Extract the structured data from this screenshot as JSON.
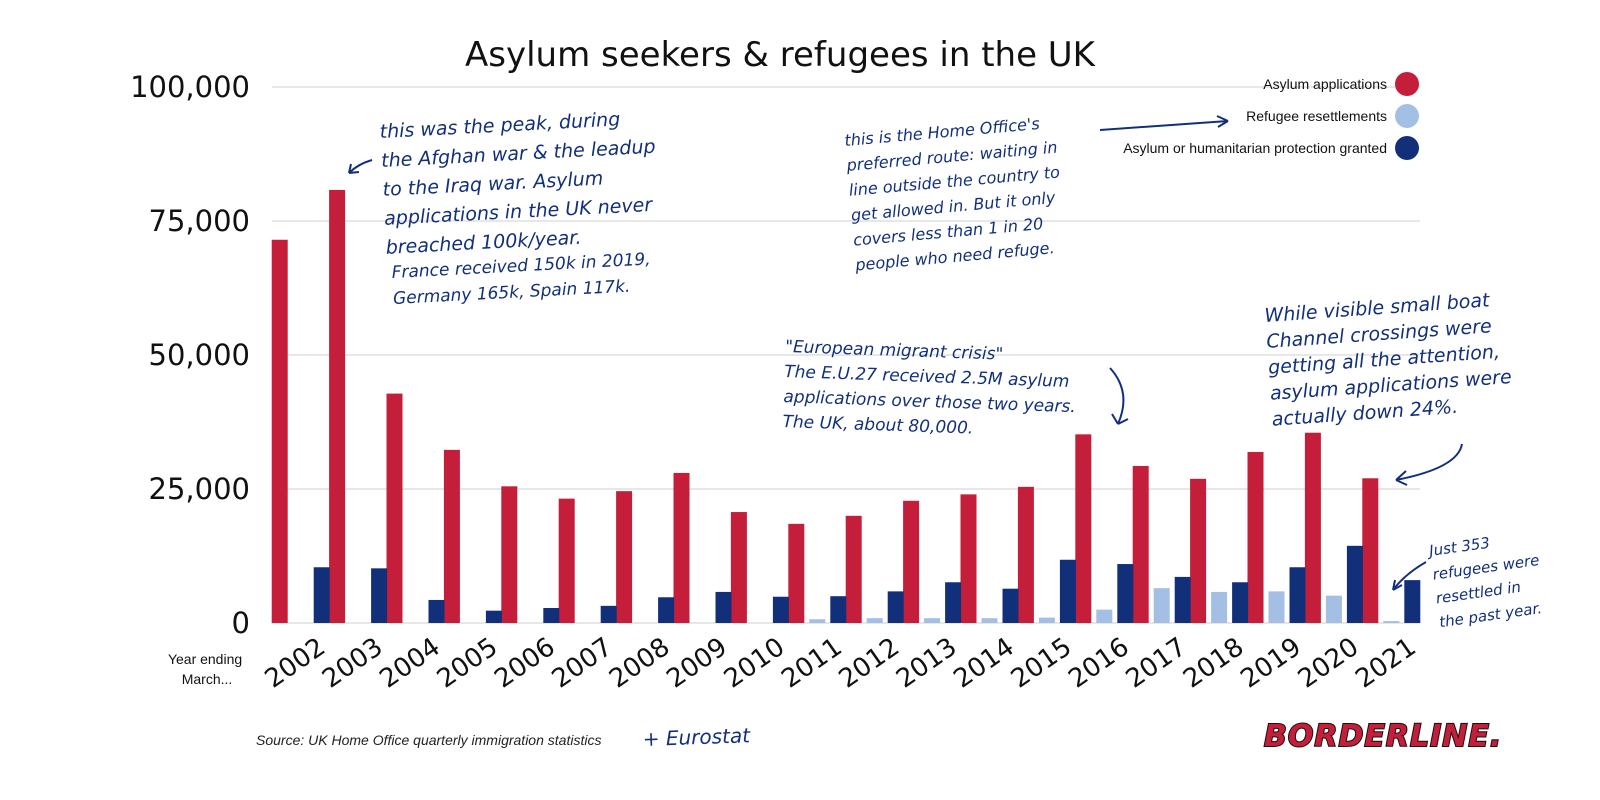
{
  "chart_data": {
    "type": "bar",
    "title": "Asylum seekers & refugees in the UK",
    "xlabel": "Year ending March...",
    "ylabel": "",
    "ylim": [
      0,
      100000
    ],
    "yticks": [
      "0",
      "25,000",
      "50,000",
      "75,000",
      "100,000"
    ],
    "categories": [
      "2002",
      "2003",
      "2004",
      "2005",
      "2006",
      "2007",
      "2008",
      "2009",
      "2010",
      "2011",
      "2012",
      "2013",
      "2014",
      "2015",
      "2016",
      "2017",
      "2018",
      "2019",
      "2020",
      "2021"
    ],
    "series": [
      {
        "name": "Asylum applications",
        "color": "#c41e3a",
        "values": [
          71500,
          80800,
          42800,
          32300,
          25500,
          23200,
          24600,
          28000,
          20700,
          18500,
          20000,
          22800,
          24000,
          25400,
          35200,
          29300,
          26900,
          31900,
          35500,
          27000
        ]
      },
      {
        "name": "Refugee resettlements",
        "color": "#a3bfe3",
        "values": [
          0,
          0,
          0,
          0,
          0,
          0,
          0,
          0,
          0,
          700,
          900,
          900,
          900,
          1000,
          2500,
          6500,
          5800,
          5900,
          5100,
          353
        ]
      },
      {
        "name": "Asylum or humanitarian protection granted",
        "color": "#12307a",
        "values": [
          10400,
          10200,
          4300,
          2300,
          2800,
          3200,
          4800,
          5800,
          4900,
          5000,
          5900,
          7600,
          6400,
          11800,
          11000,
          8600,
          7600,
          10400,
          14400,
          8000
        ]
      }
    ],
    "legend_position": "top-right"
  },
  "source": "Source: UK Home Office quarterly immigration statistics",
  "source_handwritten": "+ Eurostat",
  "logo": "BORDERLINE.",
  "annotations": {
    "peak": [
      "this was the peak, during",
      "the Afghan war & the leadup",
      "to the Iraq war. Asylum",
      "applications in the UK never",
      "breached 100k/year."
    ],
    "europe_compare": [
      "France received 150k in 2019,",
      "Germany 165k, Spain 117k."
    ],
    "home_office": [
      "this is the Home Office's",
      "preferred route: waiting in",
      "line outside the country to",
      "get allowed in. But it only",
      "covers less than 1 in 20",
      "people who need refuge."
    ],
    "migrant_crisis": [
      "\"European migrant crisis\"",
      "The E.U.27 received 2.5M asylum",
      "applications over those two years.",
      "The UK, about 80,000."
    ],
    "small_boats": [
      "While visible small boat",
      "Channel crossings were",
      "getting all the attention,",
      "asylum applications were",
      "actually down 24%."
    ],
    "resettled": [
      "Just 353",
      "refugees were",
      "resettled in",
      "the past year."
    ]
  }
}
